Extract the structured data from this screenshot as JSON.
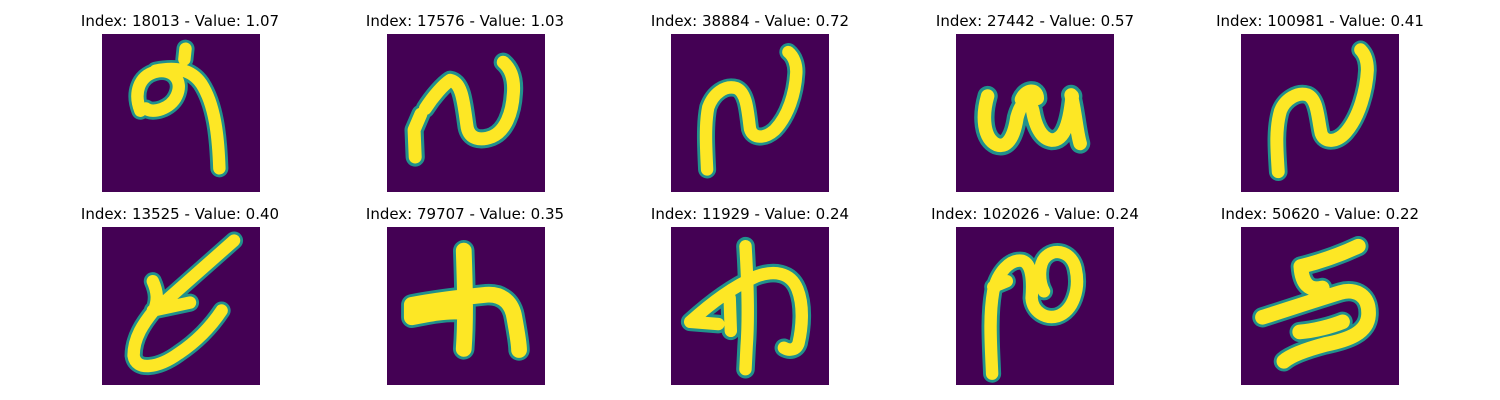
{
  "figure": {
    "colormap": {
      "background": "#440154",
      "foreground": "#fde725",
      "edge": "#21918c"
    },
    "panels": [
      {
        "title": "Index: 18013 - Value: 1.07",
        "glyph": "glyph-1"
      },
      {
        "title": "Index: 17576 - Value: 1.03",
        "glyph": "glyph-2"
      },
      {
        "title": "Index: 38884 - Value: 0.72",
        "glyph": "glyph-3"
      },
      {
        "title": "Index: 27442 - Value: 0.57",
        "glyph": "glyph-4"
      },
      {
        "title": "Index: 100981 - Value: 0.41",
        "glyph": "glyph-5"
      },
      {
        "title": "Index: 13525 - Value: 0.40",
        "glyph": "glyph-6"
      },
      {
        "title": "Index: 79707 - Value: 0.35",
        "glyph": "glyph-7"
      },
      {
        "title": "Index: 11929 - Value: 0.24",
        "glyph": "glyph-8"
      },
      {
        "title": "Index: 102026 - Value: 0.24",
        "glyph": "glyph-9"
      },
      {
        "title": "Index: 50620 - Value: 0.22",
        "glyph": "glyph-10"
      }
    ]
  }
}
